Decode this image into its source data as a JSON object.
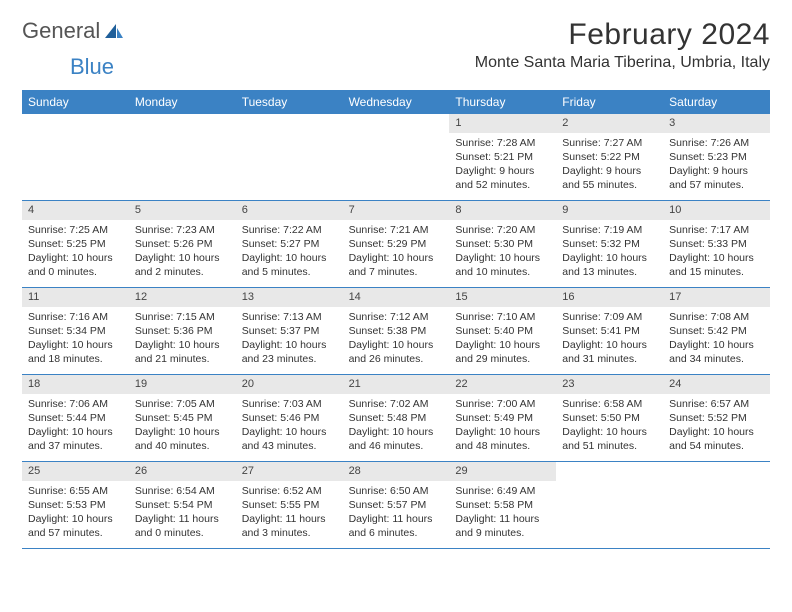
{
  "logo": {
    "text1": "General",
    "text2": "Blue"
  },
  "title": "February 2024",
  "location": "Monte Santa Maria Tiberina, Umbria, Italy",
  "colors": {
    "header_bg": "#3b82c4",
    "daynum_bg": "#e8e8e8",
    "border": "#3b82c4",
    "text": "#333333",
    "logo_blue": "#3b82c4"
  },
  "weekdays": [
    "Sunday",
    "Monday",
    "Tuesday",
    "Wednesday",
    "Thursday",
    "Friday",
    "Saturday"
  ],
  "weeks": [
    [
      {
        "empty": true
      },
      {
        "empty": true
      },
      {
        "empty": true
      },
      {
        "empty": true
      },
      {
        "num": "1",
        "sunrise": "Sunrise: 7:28 AM",
        "sunset": "Sunset: 5:21 PM",
        "daylight": "Daylight: 9 hours and 52 minutes."
      },
      {
        "num": "2",
        "sunrise": "Sunrise: 7:27 AM",
        "sunset": "Sunset: 5:22 PM",
        "daylight": "Daylight: 9 hours and 55 minutes."
      },
      {
        "num": "3",
        "sunrise": "Sunrise: 7:26 AM",
        "sunset": "Sunset: 5:23 PM",
        "daylight": "Daylight: 9 hours and 57 minutes."
      }
    ],
    [
      {
        "num": "4",
        "sunrise": "Sunrise: 7:25 AM",
        "sunset": "Sunset: 5:25 PM",
        "daylight": "Daylight: 10 hours and 0 minutes."
      },
      {
        "num": "5",
        "sunrise": "Sunrise: 7:23 AM",
        "sunset": "Sunset: 5:26 PM",
        "daylight": "Daylight: 10 hours and 2 minutes."
      },
      {
        "num": "6",
        "sunrise": "Sunrise: 7:22 AM",
        "sunset": "Sunset: 5:27 PM",
        "daylight": "Daylight: 10 hours and 5 minutes."
      },
      {
        "num": "7",
        "sunrise": "Sunrise: 7:21 AM",
        "sunset": "Sunset: 5:29 PM",
        "daylight": "Daylight: 10 hours and 7 minutes."
      },
      {
        "num": "8",
        "sunrise": "Sunrise: 7:20 AM",
        "sunset": "Sunset: 5:30 PM",
        "daylight": "Daylight: 10 hours and 10 minutes."
      },
      {
        "num": "9",
        "sunrise": "Sunrise: 7:19 AM",
        "sunset": "Sunset: 5:32 PM",
        "daylight": "Daylight: 10 hours and 13 minutes."
      },
      {
        "num": "10",
        "sunrise": "Sunrise: 7:17 AM",
        "sunset": "Sunset: 5:33 PM",
        "daylight": "Daylight: 10 hours and 15 minutes."
      }
    ],
    [
      {
        "num": "11",
        "sunrise": "Sunrise: 7:16 AM",
        "sunset": "Sunset: 5:34 PM",
        "daylight": "Daylight: 10 hours and 18 minutes."
      },
      {
        "num": "12",
        "sunrise": "Sunrise: 7:15 AM",
        "sunset": "Sunset: 5:36 PM",
        "daylight": "Daylight: 10 hours and 21 minutes."
      },
      {
        "num": "13",
        "sunrise": "Sunrise: 7:13 AM",
        "sunset": "Sunset: 5:37 PM",
        "daylight": "Daylight: 10 hours and 23 minutes."
      },
      {
        "num": "14",
        "sunrise": "Sunrise: 7:12 AM",
        "sunset": "Sunset: 5:38 PM",
        "daylight": "Daylight: 10 hours and 26 minutes."
      },
      {
        "num": "15",
        "sunrise": "Sunrise: 7:10 AM",
        "sunset": "Sunset: 5:40 PM",
        "daylight": "Daylight: 10 hours and 29 minutes."
      },
      {
        "num": "16",
        "sunrise": "Sunrise: 7:09 AM",
        "sunset": "Sunset: 5:41 PM",
        "daylight": "Daylight: 10 hours and 31 minutes."
      },
      {
        "num": "17",
        "sunrise": "Sunrise: 7:08 AM",
        "sunset": "Sunset: 5:42 PM",
        "daylight": "Daylight: 10 hours and 34 minutes."
      }
    ],
    [
      {
        "num": "18",
        "sunrise": "Sunrise: 7:06 AM",
        "sunset": "Sunset: 5:44 PM",
        "daylight": "Daylight: 10 hours and 37 minutes."
      },
      {
        "num": "19",
        "sunrise": "Sunrise: 7:05 AM",
        "sunset": "Sunset: 5:45 PM",
        "daylight": "Daylight: 10 hours and 40 minutes."
      },
      {
        "num": "20",
        "sunrise": "Sunrise: 7:03 AM",
        "sunset": "Sunset: 5:46 PM",
        "daylight": "Daylight: 10 hours and 43 minutes."
      },
      {
        "num": "21",
        "sunrise": "Sunrise: 7:02 AM",
        "sunset": "Sunset: 5:48 PM",
        "daylight": "Daylight: 10 hours and 46 minutes."
      },
      {
        "num": "22",
        "sunrise": "Sunrise: 7:00 AM",
        "sunset": "Sunset: 5:49 PM",
        "daylight": "Daylight: 10 hours and 48 minutes."
      },
      {
        "num": "23",
        "sunrise": "Sunrise: 6:58 AM",
        "sunset": "Sunset: 5:50 PM",
        "daylight": "Daylight: 10 hours and 51 minutes."
      },
      {
        "num": "24",
        "sunrise": "Sunrise: 6:57 AM",
        "sunset": "Sunset: 5:52 PM",
        "daylight": "Daylight: 10 hours and 54 minutes."
      }
    ],
    [
      {
        "num": "25",
        "sunrise": "Sunrise: 6:55 AM",
        "sunset": "Sunset: 5:53 PM",
        "daylight": "Daylight: 10 hours and 57 minutes."
      },
      {
        "num": "26",
        "sunrise": "Sunrise: 6:54 AM",
        "sunset": "Sunset: 5:54 PM",
        "daylight": "Daylight: 11 hours and 0 minutes."
      },
      {
        "num": "27",
        "sunrise": "Sunrise: 6:52 AM",
        "sunset": "Sunset: 5:55 PM",
        "daylight": "Daylight: 11 hours and 3 minutes."
      },
      {
        "num": "28",
        "sunrise": "Sunrise: 6:50 AM",
        "sunset": "Sunset: 5:57 PM",
        "daylight": "Daylight: 11 hours and 6 minutes."
      },
      {
        "num": "29",
        "sunrise": "Sunrise: 6:49 AM",
        "sunset": "Sunset: 5:58 PM",
        "daylight": "Daylight: 11 hours and 9 minutes."
      },
      {
        "empty": true
      },
      {
        "empty": true
      }
    ]
  ]
}
